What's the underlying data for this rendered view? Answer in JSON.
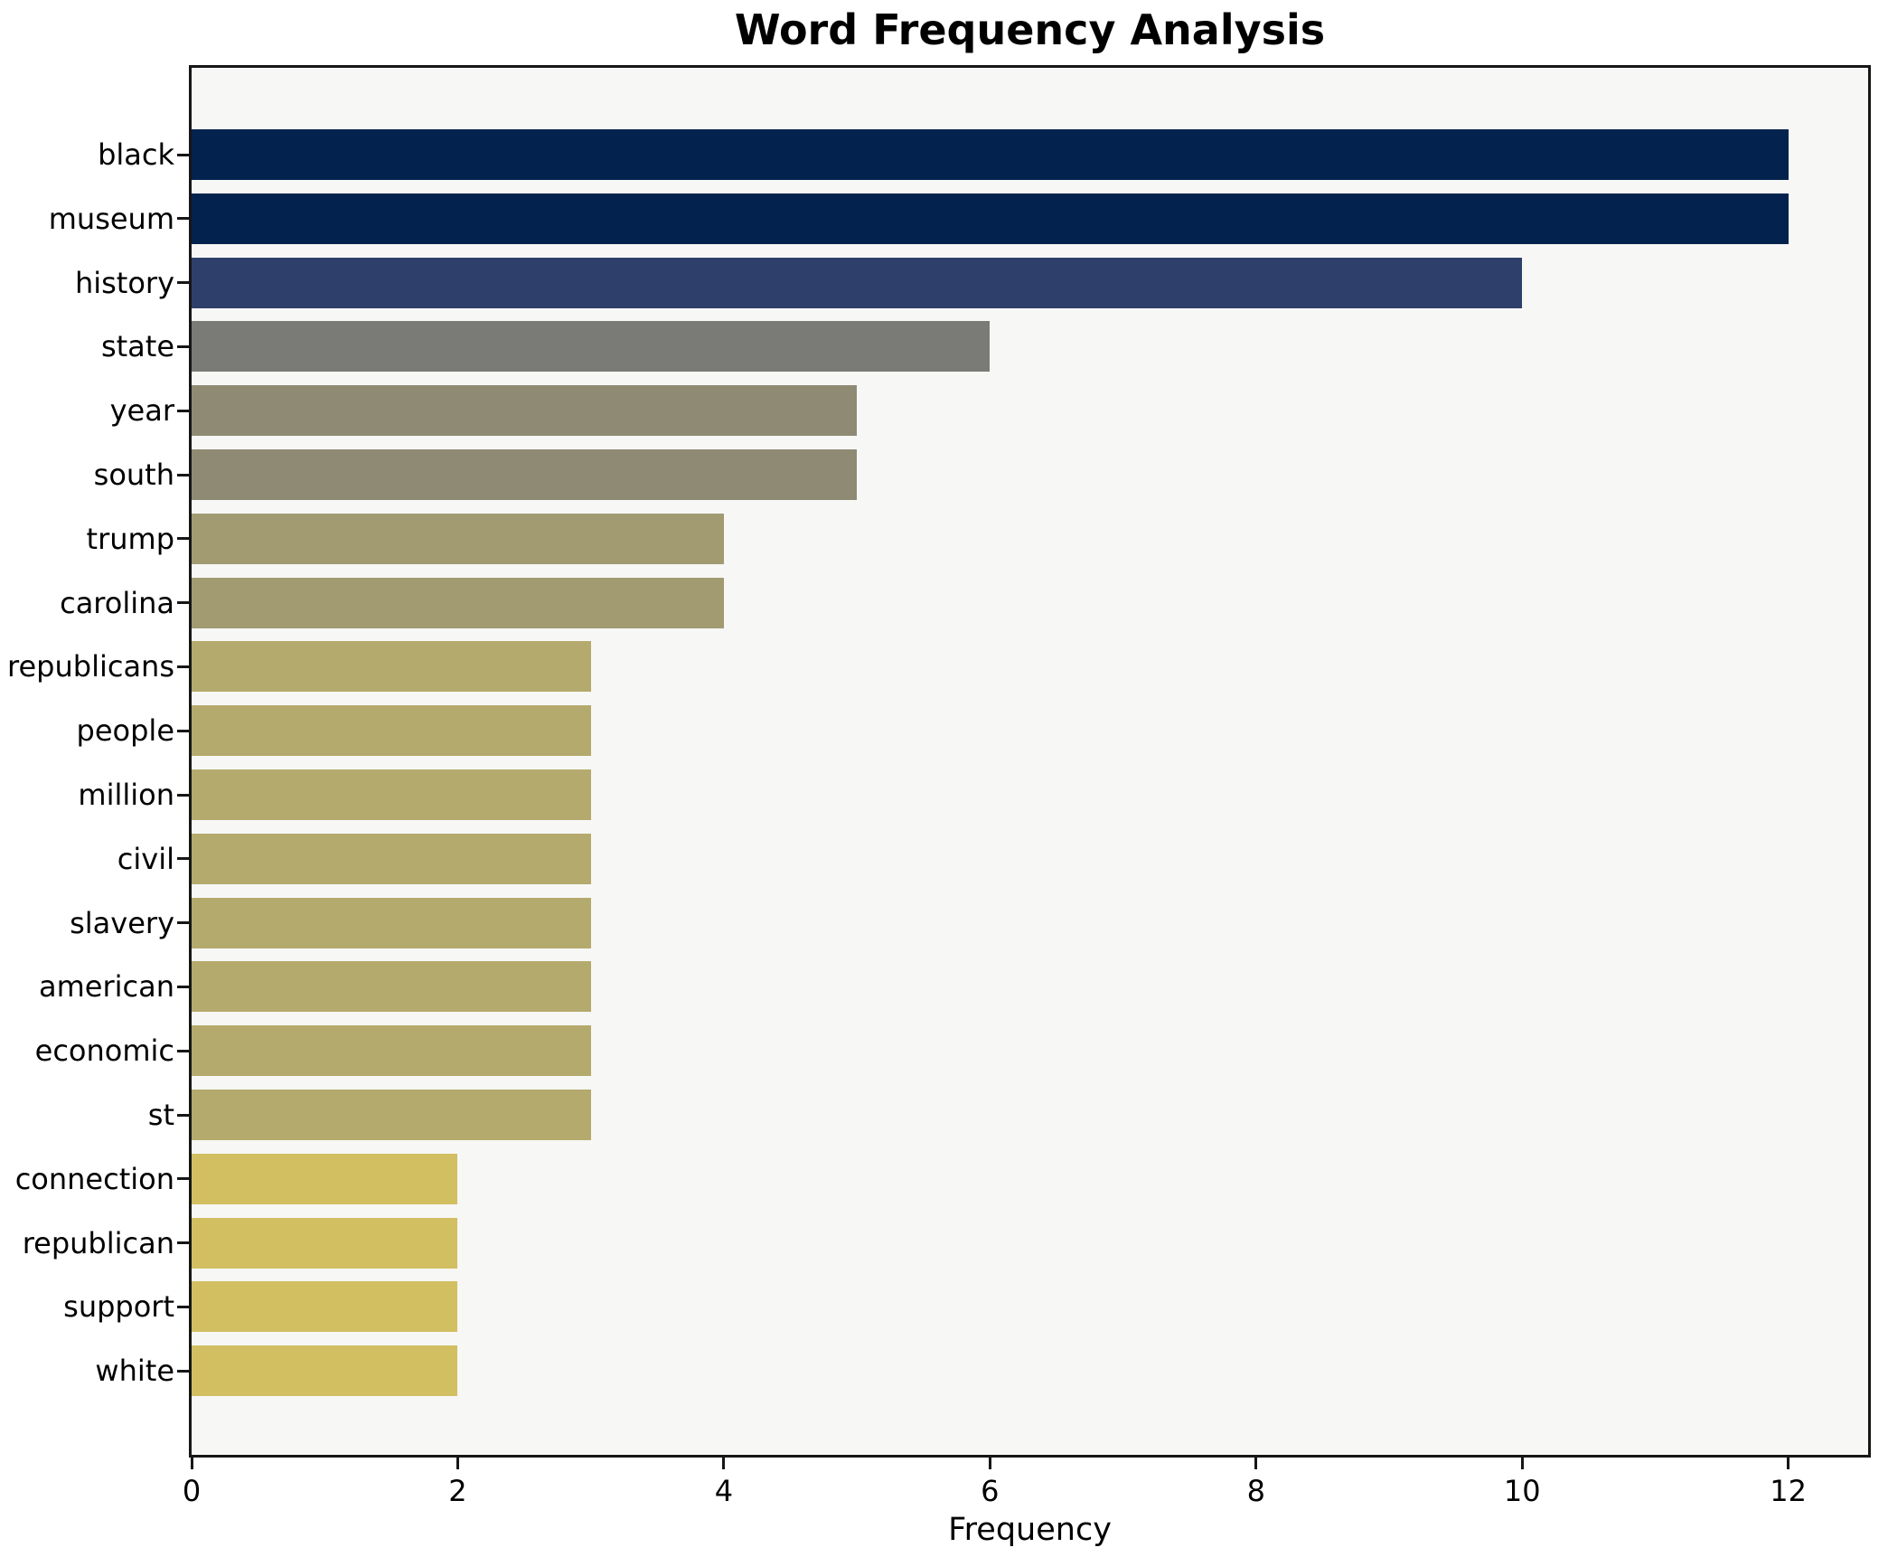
{
  "chart_data": {
    "type": "bar",
    "orientation": "horizontal",
    "title": "Word Frequency Analysis",
    "xlabel": "Frequency",
    "ylabel": "",
    "categories": [
      "black",
      "museum",
      "history",
      "state",
      "year",
      "south",
      "trump",
      "carolina",
      "republicans",
      "people",
      "million",
      "civil",
      "slavery",
      "american",
      "economic",
      "st",
      "connection",
      "republican",
      "support",
      "white"
    ],
    "values": [
      12,
      12,
      10,
      6,
      5,
      5,
      4,
      4,
      3,
      3,
      3,
      3,
      3,
      3,
      3,
      3,
      2,
      2,
      2,
      2
    ],
    "bar_colors": [
      "#03234e",
      "#03234e",
      "#2d3f6a",
      "#7a7a77",
      "#8f8a74",
      "#8f8a74",
      "#a29b72",
      "#a29b72",
      "#b5aa6d",
      "#b5aa6d",
      "#b5aa6d",
      "#b5aa6d",
      "#b5aa6d",
      "#b5aa6d",
      "#b5aa6d",
      "#b5aa6d",
      "#d2bf62",
      "#d2bf62",
      "#d2bf62",
      "#d2bf62"
    ],
    "xlim": [
      0,
      12.6
    ],
    "xticks": [
      0,
      2,
      4,
      6,
      8,
      10,
      12
    ],
    "grid": false,
    "legend": "none",
    "plot_background": "#f7f7f6",
    "figure_background": "#ffffff",
    "frame_color": "#161616",
    "text_color": "#000000"
  }
}
